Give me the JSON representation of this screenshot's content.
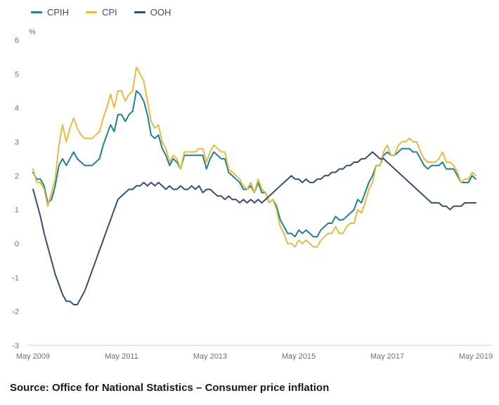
{
  "source": "Source: Office for National Statistics – Consumer price inflation",
  "chart_data": {
    "type": "line",
    "title": "",
    "xlabel": "",
    "ylabel": "%",
    "ylim": [
      -3,
      6
    ],
    "y_ticks": [
      6,
      5,
      4,
      3,
      2,
      1,
      0,
      -1,
      -2,
      -3
    ],
    "x_range_months": 120,
    "x_tick_positions": [
      0,
      24,
      48,
      72,
      96,
      120
    ],
    "x_tick_labels": [
      "May 2009",
      "May 2011",
      "May 2013",
      "May 2015",
      "May 2017",
      "May 2019"
    ],
    "grid": false,
    "legend_position": "top-left",
    "axis_line_color": "#bcd9dd",
    "series": [
      {
        "name": "CPIH",
        "color": "#217f8e",
        "values": [
          2.1,
          1.9,
          1.9,
          1.7,
          1.2,
          1.3,
          1.7,
          2.3,
          2.5,
          2.3,
          2.5,
          2.7,
          2.5,
          2.4,
          2.3,
          2.3,
          2.3,
          2.4,
          2.5,
          2.9,
          3.2,
          3.5,
          3.3,
          3.8,
          3.8,
          3.6,
          3.8,
          3.9,
          4.5,
          4.4,
          4.2,
          3.8,
          3.2,
          3.1,
          3.2,
          2.8,
          2.6,
          2.3,
          2.5,
          2.4,
          2.2,
          2.6,
          2.6,
          2.6,
          2.6,
          2.6,
          2.6,
          2.2,
          2.5,
          2.7,
          2.6,
          2.5,
          2.5,
          2.1,
          2.0,
          1.9,
          1.8,
          1.6,
          1.6,
          1.7,
          1.5,
          1.8,
          1.5,
          1.5,
          1.2,
          1.3,
          1.1,
          0.7,
          0.5,
          0.3,
          0.3,
          0.2,
          0.4,
          0.3,
          0.4,
          0.3,
          0.2,
          0.2,
          0.4,
          0.5,
          0.6,
          0.6,
          0.8,
          0.7,
          0.7,
          0.8,
          0.9,
          1.0,
          1.3,
          1.2,
          1.5,
          1.8,
          2.0,
          2.3,
          2.3,
          2.6,
          2.7,
          2.6,
          2.6,
          2.7,
          2.8,
          2.8,
          2.8,
          2.7,
          2.7,
          2.5,
          2.3,
          2.2,
          2.3,
          2.3,
          2.3,
          2.4,
          2.2,
          2.2,
          2.2,
          2.0,
          1.8,
          1.8,
          1.8,
          2.0,
          1.9
        ]
      },
      {
        "name": "CPI",
        "color": "#e3ba45",
        "values": [
          2.2,
          1.8,
          1.8,
          1.6,
          1.1,
          1.5,
          1.9,
          2.9,
          3.5,
          3.0,
          3.4,
          3.7,
          3.4,
          3.2,
          3.1,
          3.1,
          3.1,
          3.2,
          3.3,
          3.7,
          4.0,
          4.4,
          4.0,
          4.5,
          4.5,
          4.2,
          4.4,
          4.5,
          5.2,
          5.0,
          4.8,
          4.2,
          3.6,
          3.4,
          3.5,
          3.0,
          2.8,
          2.4,
          2.6,
          2.5,
          2.2,
          2.7,
          2.7,
          2.7,
          2.7,
          2.8,
          2.8,
          2.4,
          2.7,
          2.9,
          2.8,
          2.7,
          2.7,
          2.2,
          2.1,
          2.0,
          1.9,
          1.7,
          1.6,
          1.8,
          1.5,
          1.9,
          1.6,
          1.5,
          1.2,
          1.3,
          1.0,
          0.5,
          0.3,
          0.0,
          0.0,
          -0.1,
          0.1,
          0.0,
          0.1,
          0.0,
          -0.1,
          -0.1,
          0.1,
          0.2,
          0.3,
          0.3,
          0.5,
          0.3,
          0.3,
          0.5,
          0.6,
          0.6,
          1.0,
          0.9,
          1.2,
          1.6,
          1.8,
          2.3,
          2.3,
          2.7,
          2.9,
          2.6,
          2.6,
          2.9,
          3.0,
          3.0,
          3.1,
          3.0,
          3.0,
          2.7,
          2.5,
          2.4,
          2.4,
          2.4,
          2.5,
          2.7,
          2.4,
          2.4,
          2.3,
          2.1,
          1.8,
          1.9,
          1.9,
          2.1,
          2.0
        ]
      },
      {
        "name": "OOH",
        "color": "#32506b",
        "values": [
          1.6,
          1.2,
          0.8,
          0.3,
          -0.1,
          -0.5,
          -0.9,
          -1.2,
          -1.5,
          -1.7,
          -1.7,
          -1.8,
          -1.8,
          -1.6,
          -1.4,
          -1.1,
          -0.8,
          -0.5,
          -0.2,
          0.1,
          0.4,
          0.7,
          1.0,
          1.3,
          1.4,
          1.5,
          1.6,
          1.6,
          1.7,
          1.7,
          1.8,
          1.7,
          1.8,
          1.7,
          1.8,
          1.7,
          1.6,
          1.7,
          1.6,
          1.6,
          1.7,
          1.6,
          1.6,
          1.7,
          1.6,
          1.7,
          1.5,
          1.6,
          1.6,
          1.5,
          1.4,
          1.4,
          1.3,
          1.4,
          1.3,
          1.3,
          1.2,
          1.3,
          1.2,
          1.3,
          1.2,
          1.3,
          1.2,
          1.3,
          1.4,
          1.5,
          1.6,
          1.7,
          1.8,
          1.9,
          2.0,
          1.9,
          1.9,
          1.8,
          1.9,
          1.8,
          1.8,
          1.9,
          1.9,
          2.0,
          2.0,
          2.1,
          2.1,
          2.2,
          2.2,
          2.3,
          2.3,
          2.4,
          2.4,
          2.5,
          2.5,
          2.6,
          2.7,
          2.6,
          2.5,
          2.5,
          2.4,
          2.3,
          2.2,
          2.1,
          2.0,
          1.9,
          1.8,
          1.7,
          1.6,
          1.5,
          1.4,
          1.3,
          1.2,
          1.2,
          1.2,
          1.1,
          1.1,
          1.0,
          1.1,
          1.1,
          1.1,
          1.2,
          1.2,
          1.2,
          1.2
        ]
      }
    ]
  }
}
